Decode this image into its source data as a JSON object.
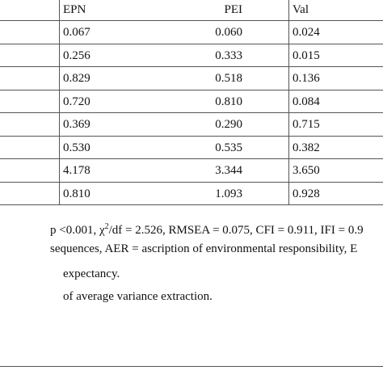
{
  "table": {
    "header": [
      "EPN",
      "PEI",
      "Val"
    ],
    "rows": [
      [
        "0.067",
        "0.060",
        "0.024"
      ],
      [
        "0.256",
        "0.333",
        "0.015"
      ],
      [
        "0.829",
        "0.518",
        "0.136"
      ],
      [
        "0.720",
        "0.810",
        "0.084"
      ],
      [
        "0.369",
        "0.290",
        "0.715"
      ],
      [
        "0.530",
        "0.535",
        "0.382"
      ],
      [
        "4.178",
        "3.344",
        "3.650"
      ],
      [
        "0.810",
        "1.093",
        "0.928"
      ]
    ]
  },
  "notes": [
    {
      "before": "p <0.001, χ",
      "sup": "2",
      "after": "/df = 2.526, RMSEA = 0.075, CFI = 0.911, IFI = 0.9"
    },
    {
      "text": "sequences, AER = ascription of environmental responsibility, E"
    },
    {
      "text": "expectancy."
    },
    {
      "text": "of average variance extraction."
    }
  ]
}
